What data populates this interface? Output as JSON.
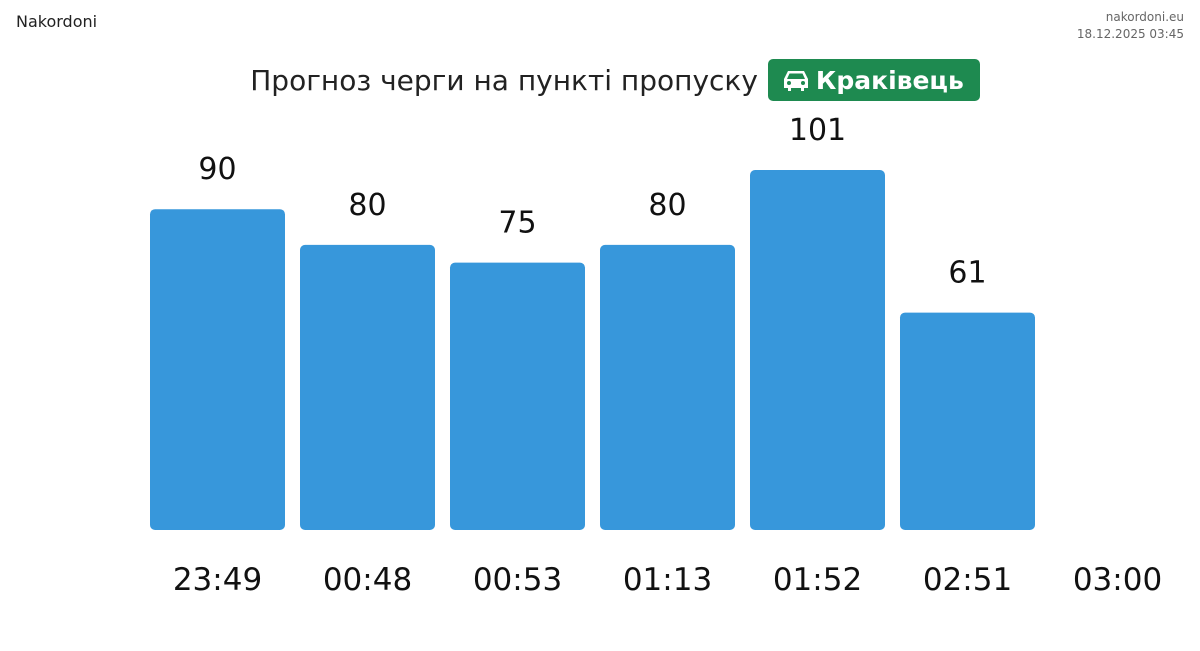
{
  "header": {
    "logo_alt": "Nakordoni",
    "site": "nakordoni.eu",
    "timestamp": "18.12.2025 03:45"
  },
  "chart_data": {
    "type": "bar",
    "title": "Прогноз черги на пункті пропуску",
    "checkpoint": "Краківець",
    "categories": [
      "23:49",
      "00:48",
      "00:53",
      "01:13",
      "01:52",
      "02:51",
      "03:00"
    ],
    "values": [
      90,
      80,
      75,
      80,
      101,
      61,
      null
    ],
    "color": "#3797db",
    "badge_color": "#1e8a50"
  }
}
